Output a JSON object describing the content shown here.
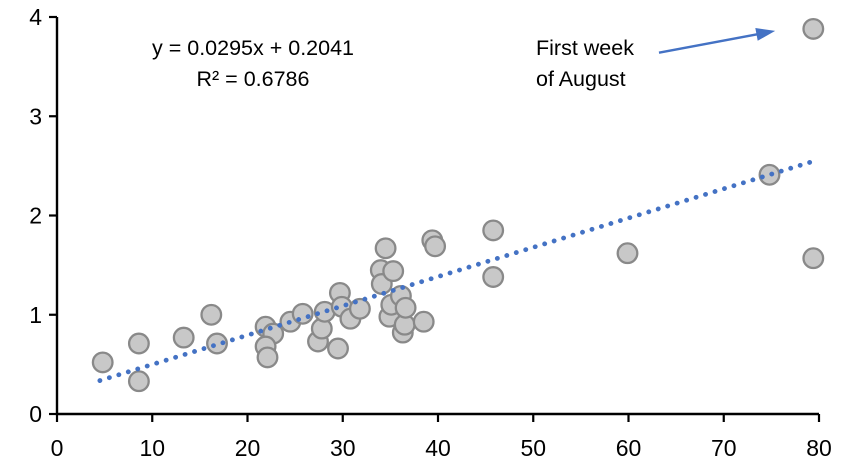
{
  "chart_data": {
    "type": "scatter",
    "title": "",
    "xlabel": "",
    "ylabel": "",
    "xlim": [
      0,
      80
    ],
    "ylim": [
      0,
      4
    ],
    "xticks": [
      0,
      10,
      20,
      30,
      40,
      50,
      60,
      70,
      80
    ],
    "xtick_labels": [
      "0",
      "10",
      "20",
      "30",
      "40",
      "50",
      "60",
      "70",
      "80"
    ],
    "yticks": [
      0,
      1,
      2,
      3,
      4
    ],
    "ytick_labels": [
      "0",
      "1",
      "2",
      "3",
      "4"
    ],
    "grid": false,
    "legend": "none",
    "points": [
      [
        4.8,
        0.52
      ],
      [
        8.6,
        0.71
      ],
      [
        8.6,
        0.33
      ],
      [
        13.3,
        0.77
      ],
      [
        16.2,
        1.0
      ],
      [
        16.8,
        0.71
      ],
      [
        21.9,
        0.88
      ],
      [
        22.7,
        0.81
      ],
      [
        21.9,
        0.68
      ],
      [
        22.1,
        0.57
      ],
      [
        24.5,
        0.93
      ],
      [
        25.8,
        1.01
      ],
      [
        27.4,
        0.73
      ],
      [
        27.8,
        0.86
      ],
      [
        28.1,
        1.03
      ],
      [
        29.5,
        0.66
      ],
      [
        29.7,
        1.22
      ],
      [
        29.9,
        1.08
      ],
      [
        30.8,
        0.96
      ],
      [
        31.8,
        1.06
      ],
      [
        34.0,
        1.45
      ],
      [
        34.1,
        1.31
      ],
      [
        34.5,
        1.67
      ],
      [
        34.9,
        0.98
      ],
      [
        35.1,
        1.1
      ],
      [
        35.3,
        1.44
      ],
      [
        36.1,
        1.19
      ],
      [
        36.3,
        0.82
      ],
      [
        36.5,
        0.9
      ],
      [
        36.6,
        1.07
      ],
      [
        38.5,
        0.93
      ],
      [
        39.4,
        1.75
      ],
      [
        39.7,
        1.69
      ],
      [
        45.8,
        1.85
      ],
      [
        45.8,
        1.38
      ],
      [
        59.9,
        1.62
      ],
      [
        74.8,
        2.41
      ],
      [
        79.4,
        1.57
      ],
      [
        79.4,
        3.88
      ]
    ],
    "trendline": {
      "style": "dotted",
      "slope": 0.0295,
      "intercept": 0.2041,
      "x_start": 4.5,
      "x_end": 79.3,
      "equation_label": "y = 0.0295x + 0.2041",
      "r2_label": "R² = 0.6786"
    },
    "annotation": {
      "lines": [
        "First week",
        "of August"
      ],
      "points_to": [
        79.4,
        3.88
      ],
      "arrow_from": [
        63.2,
        3.64
      ],
      "arrow_to": [
        75.4,
        3.86
      ]
    },
    "colors": {
      "marker_fill": "#c8c8c8",
      "marker_stroke": "#898989",
      "trend": "#4472c4",
      "arrow": "#4472c4",
      "axis": "#000000",
      "text": "#000000"
    }
  }
}
